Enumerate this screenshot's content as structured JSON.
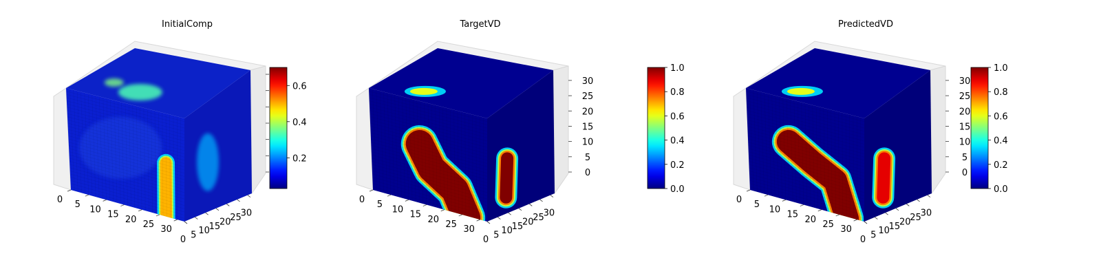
{
  "chart_data": [
    {
      "type": "voxel-3d",
      "title": "InitialComp",
      "axes": {
        "x": {
          "ticks": [
            "0",
            "5",
            "10",
            "15",
            "20",
            "25",
            "30"
          ],
          "range": [
            0,
            32
          ]
        },
        "y": {
          "ticks": [
            "0",
            "5",
            "10",
            "15",
            "20",
            "25",
            "30"
          ],
          "range": [
            0,
            32
          ]
        },
        "z": {
          "ticks": [],
          "range": [
            0,
            32
          ]
        }
      },
      "colorbar": {
        "colormap": "jet",
        "range": [
          0.03,
          0.7
        ],
        "ticks": [
          "0.2",
          "0.4",
          "0.6"
        ],
        "tick_values": [
          0.2,
          0.4,
          0.6
        ]
      },
      "features": [
        {
          "name": "top blob",
          "value": 0.45
        },
        {
          "name": "front column",
          "value": 0.7
        },
        {
          "name": "side glow",
          "value": 0.3
        }
      ]
    },
    {
      "type": "voxel-3d",
      "title": "TargetVD",
      "axes": {
        "x": {
          "ticks": [
            "0",
            "5",
            "10",
            "15",
            "20",
            "25",
            "30"
          ],
          "range": [
            0,
            32
          ]
        },
        "y": {
          "ticks": [
            "0",
            "5",
            "10",
            "15",
            "20",
            "25",
            "30"
          ],
          "range": [
            0,
            32
          ]
        },
        "z": {
          "ticks": [
            "0",
            "5",
            "10",
            "15",
            "20",
            "25",
            "30"
          ],
          "range": [
            0,
            32
          ]
        }
      },
      "colorbar": {
        "colormap": "jet",
        "range": [
          0.0,
          1.0
        ],
        "ticks": [
          "0.0",
          "0.2",
          "0.4",
          "0.6",
          "0.8",
          "1.0"
        ],
        "tick_values": [
          0.0,
          0.2,
          0.4,
          0.6,
          0.8,
          1.0
        ]
      },
      "features": [
        {
          "name": "diagonal band",
          "value": 1.0
        },
        {
          "name": "side blob",
          "value": 1.0
        },
        {
          "name": "top blob",
          "value": 0.6
        }
      ]
    },
    {
      "type": "voxel-3d",
      "title": "PredictedVD",
      "axes": {
        "x": {
          "ticks": [
            "0",
            "5",
            "10",
            "15",
            "20",
            "25",
            "30"
          ],
          "range": [
            0,
            32
          ]
        },
        "y": {
          "ticks": [
            "0",
            "5",
            "10",
            "15",
            "20",
            "25",
            "30"
          ],
          "range": [
            0,
            32
          ]
        },
        "z": {
          "ticks": [
            "0",
            "5",
            "10",
            "15",
            "20",
            "25",
            "30"
          ],
          "range": [
            0,
            32
          ]
        }
      },
      "colorbar": {
        "colormap": "jet",
        "range": [
          0.0,
          1.0
        ],
        "ticks": [
          "0.0",
          "0.2",
          "0.4",
          "0.6",
          "0.8",
          "1.0"
        ],
        "tick_values": [
          0.0,
          0.2,
          0.4,
          0.6,
          0.8,
          1.0
        ]
      },
      "features": [
        {
          "name": "diagonal band",
          "value": 1.0
        },
        {
          "name": "side blob",
          "value": 0.9
        },
        {
          "name": "top blob",
          "value": 0.6
        }
      ]
    }
  ]
}
